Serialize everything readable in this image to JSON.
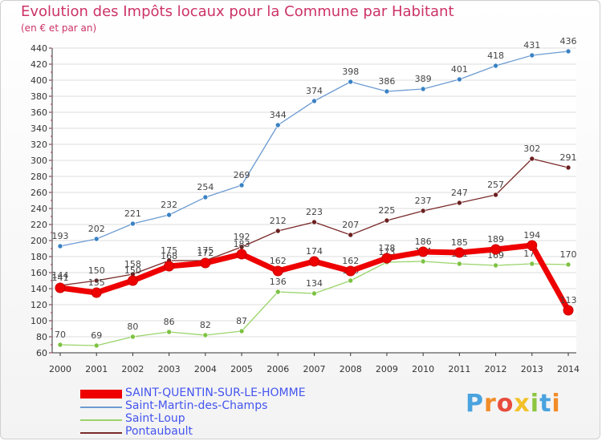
{
  "chart_data": {
    "type": "line",
    "title": "Evolution des Impôts locaux pour la Commune par Habitant",
    "subtitle": "(en € et par an)",
    "categories": [
      "2000",
      "2001",
      "2002",
      "2003",
      "2004",
      "2005",
      "2006",
      "2007",
      "2008",
      "2009",
      "2010",
      "2011",
      "2012",
      "2013",
      "2014"
    ],
    "ylim": [
      60,
      440
    ],
    "yticks": [
      60,
      80,
      100,
      120,
      140,
      160,
      180,
      200,
      220,
      240,
      260,
      280,
      300,
      320,
      340,
      360,
      380,
      400,
      420,
      440
    ],
    "grid": true,
    "series": [
      {
        "name": "Saint-Martin-des-Champs",
        "color": "#6c9bd2",
        "marker": "#3a82c4",
        "values": [
          193,
          202,
          221,
          232,
          254,
          269,
          344,
          374,
          398,
          386,
          389,
          401,
          418,
          431,
          436
        ]
      },
      {
        "name": "Saint-Loup",
        "color": "#9ad46a",
        "marker": "#7cc242",
        "values": [
          70,
          69,
          80,
          86,
          82,
          87,
          136,
          134,
          150,
          173,
          174,
          171,
          169,
          171,
          170
        ]
      },
      {
        "name": "Pontaubault",
        "color": "#7a2b2b",
        "marker": "#6b1f1f",
        "values": [
          144,
          150,
          158,
          175,
          175,
          192,
          212,
          223,
          207,
          225,
          237,
          247,
          257,
          302,
          291
        ]
      },
      {
        "name": "SAINT-QUENTIN-SUR-LE-HOMME",
        "color": "#ee0000",
        "marker": "#ee0000",
        "values": [
          141,
          135,
          150,
          168,
          172,
          183,
          162,
          174,
          162,
          178,
          186,
          185,
          189,
          194,
          113
        ]
      }
    ],
    "legend": [
      "SAINT-QUENTIN-SUR-LE-HOMME",
      "Saint-Martin-des-Champs",
      "Saint-Loup",
      "Pontaubault"
    ]
  },
  "logo": {
    "text": "Proxiti",
    "colors": [
      "#4aa3df",
      "#f28c28",
      "#e74c3c",
      "#f2c028",
      "#8cc63f",
      "#4aa3df",
      "#f28c28"
    ]
  },
  "colors": {
    "title": "#cc3366",
    "legend_text": "#4455ee",
    "axis": "#333333",
    "grid": "#dddddd"
  }
}
